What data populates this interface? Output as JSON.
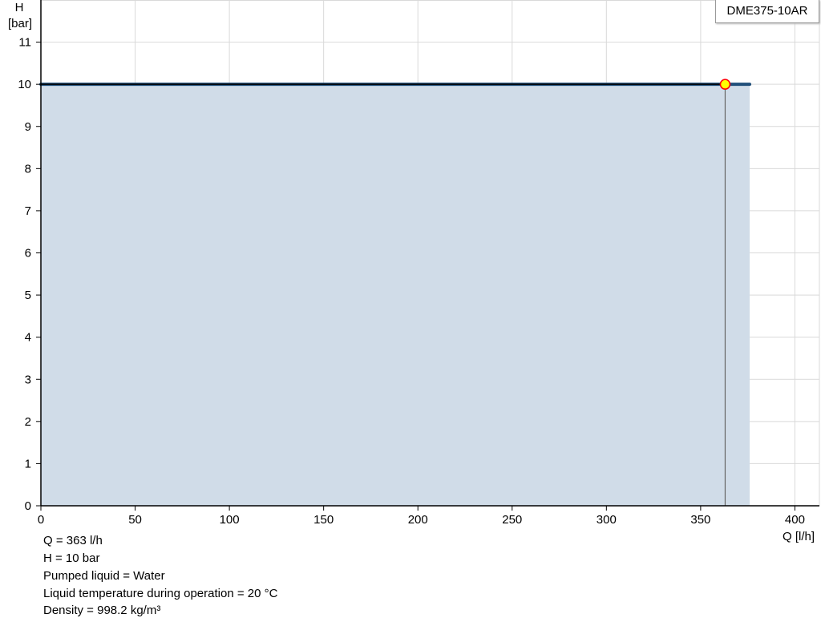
{
  "chart_data": {
    "type": "area",
    "title": "",
    "xlabel": "Q [l/h]",
    "ylabel_line1": "H",
    "ylabel_line2": "[bar]",
    "xlim": [
      0,
      413
    ],
    "ylim": [
      0,
      12
    ],
    "xticks": [
      0,
      50,
      100,
      150,
      200,
      250,
      300,
      350,
      400
    ],
    "yticks": [
      0,
      1,
      2,
      3,
      4,
      5,
      6,
      7,
      8,
      9,
      10,
      11
    ],
    "grid": true,
    "series": [
      {
        "name": "DME375-10AR",
        "x": [
          0,
          376
        ],
        "y": [
          10,
          10
        ]
      }
    ],
    "duty_point": {
      "x": 363,
      "y": 10
    },
    "legend": "top-right",
    "colors": {
      "curve": "#1f4e79",
      "fill": "#d0dce8",
      "point_fill": "#ffff00",
      "point_stroke": "#ff0000",
      "grid": "#d9d9d9"
    }
  },
  "info": [
    "Q = 363 l/h",
    "H = 10 bar",
    "Pumped liquid = Water",
    "Liquid temperature during operation = 20 °C",
    "Density = 998.2 kg/m³"
  ]
}
